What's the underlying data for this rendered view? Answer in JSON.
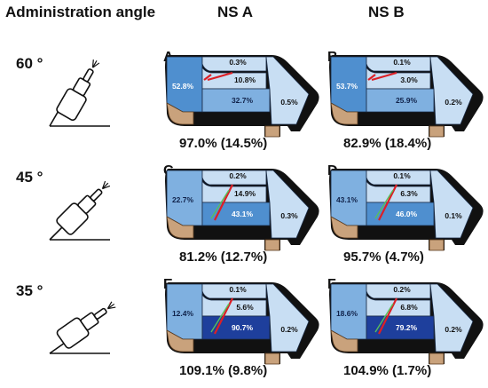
{
  "headers": {
    "angle": "Administration angle",
    "ns_a": "NS A",
    "ns_b": "NS B"
  },
  "rows": [
    {
      "angle": "60 °",
      "tilt_deg": 60,
      "a": {
        "letter": "A",
        "total": "97.0% (14.5%)",
        "v_left": "52.8%",
        "v_top": "0.3%",
        "v_mid": "10.8%",
        "v_low": "32.7%",
        "v_right": "0.5%",
        "highlight": "left"
      },
      "b": {
        "letter": "B",
        "total": "82.9% (18.4%)",
        "v_left": "53.7%",
        "v_top": "0.1%",
        "v_mid": "3.0%",
        "v_low": "25.9%",
        "v_right": "0.2%",
        "highlight": "left"
      }
    },
    {
      "angle": "45 °",
      "tilt_deg": 45,
      "a": {
        "letter": "C",
        "total": "81.2% (12.7%)",
        "v_left": "22.7%",
        "v_top": "0.2%",
        "v_mid": "14.9%",
        "v_low": "43.1%",
        "v_right": "0.3%",
        "highlight": "low"
      },
      "b": {
        "letter": "D",
        "total": "95.7% (4.7%)",
        "v_left": "43.1%",
        "v_top": "0.1%",
        "v_mid": "6.3%",
        "v_low": "46.0%",
        "v_right": "0.1%",
        "highlight": "low"
      }
    },
    {
      "angle": "35 °",
      "tilt_deg": 35,
      "a": {
        "letter": "E",
        "total": "109.1% (9.8%)",
        "v_left": "12.4%",
        "v_top": "0.1%",
        "v_mid": "5.6%",
        "v_low": "90.7%",
        "v_right": "0.2%",
        "highlight": "low-dark"
      },
      "b": {
        "letter": "F",
        "total": "104.9% (1.7%)",
        "v_left": "18.6%",
        "v_top": "0.2%",
        "v_mid": "6.8%",
        "v_low": "79.2%",
        "v_right": "0.2%",
        "highlight": "low-dark"
      }
    }
  ],
  "colors": {
    "outline": "#111111",
    "light_blue": "#c8def3",
    "mid_blue": "#7fb0e0",
    "strong_blue": "#4f8fcf",
    "dark_blue": "#1e3f9c",
    "tan": "#c9a27c",
    "arrow_red": "#dd1f26"
  }
}
